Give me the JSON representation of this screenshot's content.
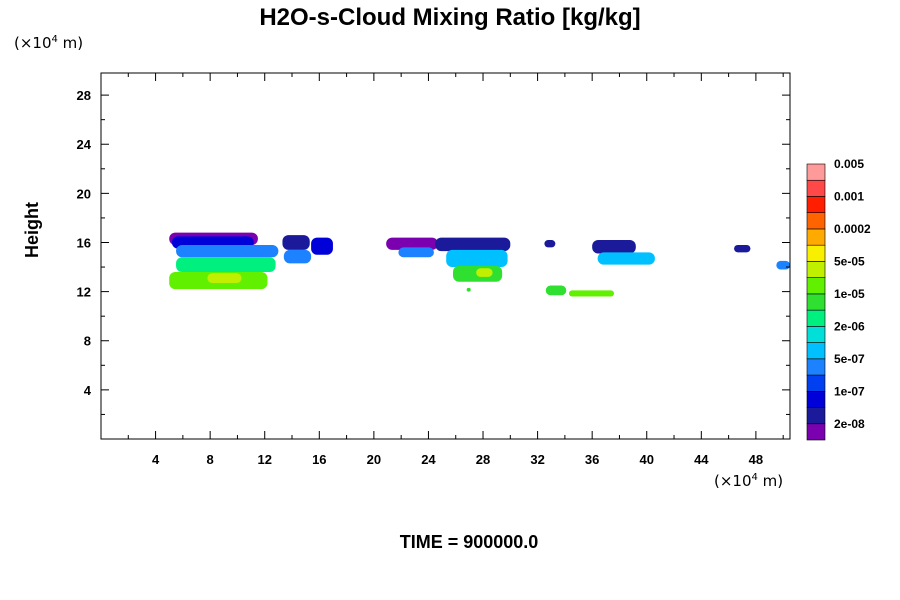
{
  "chart_data": {
    "type": "heatmap",
    "title": "H2O-s-Cloud Mixing Ratio [kg/kg]",
    "ylabel": "Height",
    "y_unit": "(×10⁴ m)",
    "x_unit": "(×10⁴ m)",
    "footer": "TIME = 900000.0",
    "xlim": [
      0,
      50.5
    ],
    "ylim": [
      0,
      29.8
    ],
    "x_ticks": [
      4,
      8,
      12,
      16,
      20,
      24,
      28,
      32,
      36,
      40,
      44,
      48
    ],
    "y_ticks": [
      4,
      8,
      12,
      16,
      20,
      24,
      28
    ],
    "x_tick_labels": [
      "4",
      "8",
      "12",
      "16",
      "20",
      "24",
      "28",
      "32",
      "36",
      "40",
      "44",
      "48"
    ],
    "y_tick_labels": [
      "4",
      "8",
      "12",
      "16",
      "20",
      "24",
      "28"
    ],
    "colorbar": {
      "colors": [
        "#7a00b0",
        "#1a1a9a",
        "#0000d8",
        "#0040f0",
        "#1c82ff",
        "#00c0ff",
        "#00e0d8",
        "#00f080",
        "#30e030",
        "#60f000",
        "#c0f000",
        "#f8f000",
        "#ffaa00",
        "#ff6400",
        "#ff1e00",
        "#ff4848",
        "#ff9a9a"
      ],
      "labels": [
        "2e-08",
        "1e-07",
        "5e-07",
        "2e-06",
        "1e-05",
        "5e-05",
        "0.0002",
        "0.001",
        "0.005"
      ]
    },
    "clouds": [
      {
        "x": 5.0,
        "y": 15.8,
        "w": 6.5,
        "h": 1.0,
        "level": 0
      },
      {
        "x": 5.2,
        "y": 15.5,
        "w": 6.0,
        "h": 1.0,
        "level": 2
      },
      {
        "x": 5.5,
        "y": 14.8,
        "w": 7.5,
        "h": 1.0,
        "level": 4
      },
      {
        "x": 5.5,
        "y": 13.6,
        "w": 7.3,
        "h": 1.2,
        "level": 7
      },
      {
        "x": 5.0,
        "y": 12.2,
        "w": 7.2,
        "h": 1.4,
        "level": 9
      },
      {
        "x": 7.8,
        "y": 12.7,
        "w": 2.5,
        "h": 0.8,
        "level": 10
      },
      {
        "x": 13.3,
        "y": 15.4,
        "w": 2.0,
        "h": 1.2,
        "level": 1
      },
      {
        "x": 13.4,
        "y": 14.3,
        "w": 2.0,
        "h": 1.1,
        "level": 4
      },
      {
        "x": 15.4,
        "y": 15.0,
        "w": 1.6,
        "h": 1.4,
        "level": 2
      },
      {
        "x": 20.9,
        "y": 15.4,
        "w": 3.8,
        "h": 1.0,
        "level": 0
      },
      {
        "x": 21.8,
        "y": 14.8,
        "w": 2.6,
        "h": 0.8,
        "level": 4
      },
      {
        "x": 24.5,
        "y": 15.3,
        "w": 5.5,
        "h": 1.1,
        "level": 1
      },
      {
        "x": 25.3,
        "y": 14.0,
        "w": 4.5,
        "h": 1.4,
        "level": 5
      },
      {
        "x": 25.8,
        "y": 12.8,
        "w": 3.6,
        "h": 1.3,
        "level": 8
      },
      {
        "x": 27.5,
        "y": 13.2,
        "w": 1.2,
        "h": 0.7,
        "level": 10
      },
      {
        "x": 32.5,
        "y": 15.6,
        "w": 0.8,
        "h": 0.6,
        "level": 1
      },
      {
        "x": 36.0,
        "y": 15.1,
        "w": 3.2,
        "h": 1.1,
        "level": 1
      },
      {
        "x": 36.4,
        "y": 14.2,
        "w": 4.2,
        "h": 1.0,
        "level": 5
      },
      {
        "x": 32.6,
        "y": 11.7,
        "w": 1.5,
        "h": 0.8,
        "level": 8
      },
      {
        "x": 34.3,
        "y": 11.6,
        "w": 3.3,
        "h": 0.5,
        "level": 9
      },
      {
        "x": 46.4,
        "y": 15.2,
        "w": 1.2,
        "h": 0.6,
        "level": 1
      },
      {
        "x": 49.5,
        "y": 13.8,
        "w": 1.0,
        "h": 0.7,
        "level": 4
      },
      {
        "x": 26.8,
        "y": 12.0,
        "w": 0.3,
        "h": 0.3,
        "level": 8
      }
    ]
  }
}
